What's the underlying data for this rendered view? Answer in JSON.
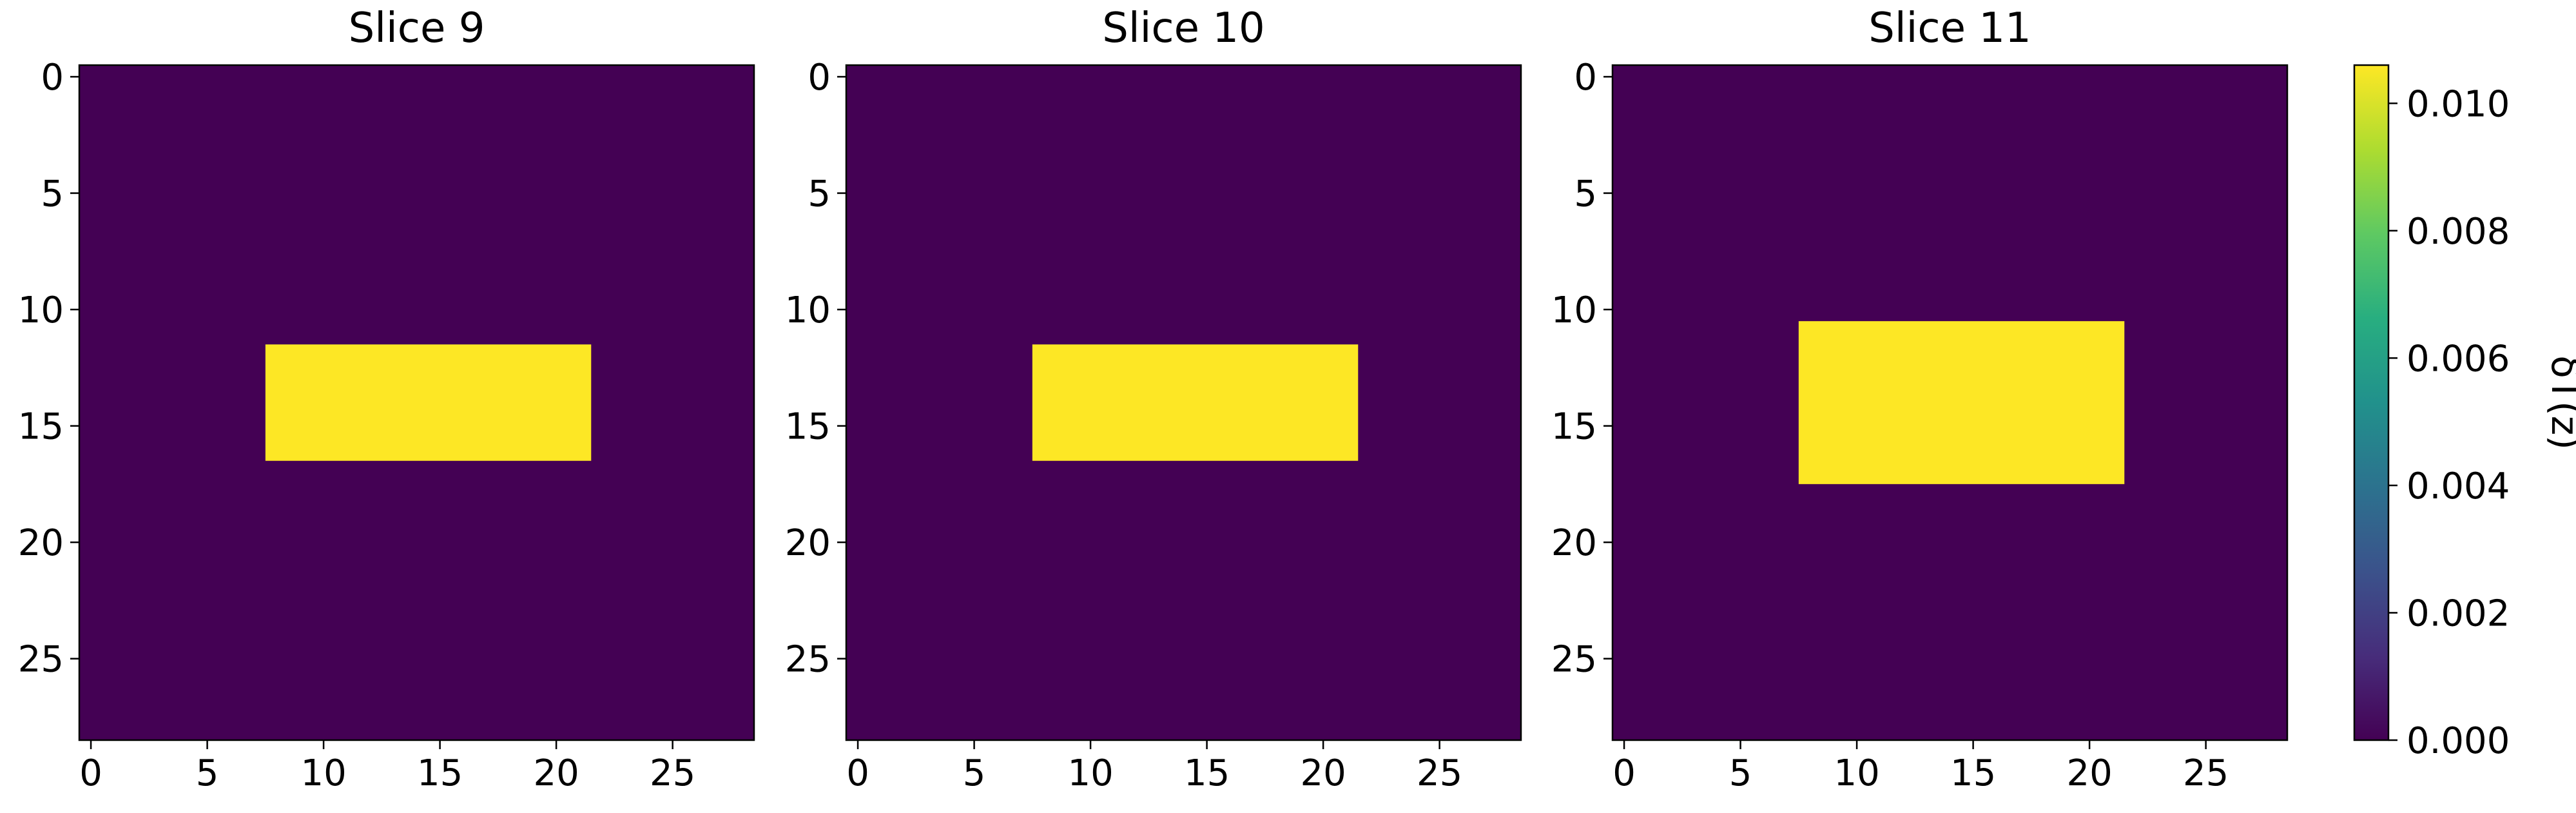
{
  "chart_data": [
    {
      "type": "heatmap",
      "title": "Slice 9",
      "xlim": [
        -0.5,
        28.5
      ],
      "ylim": [
        28.5,
        -0.5
      ],
      "xticks": [
        0,
        5,
        10,
        15,
        20,
        25
      ],
      "yticks": [
        0,
        5,
        10,
        15,
        20,
        25
      ],
      "background_value": 0.0,
      "regions": [
        {
          "value": 0.0106,
          "cols": [
            8,
            21
          ],
          "rows": [
            12,
            16
          ]
        }
      ]
    },
    {
      "type": "heatmap",
      "title": "Slice 10",
      "xlim": [
        -0.5,
        28.5
      ],
      "ylim": [
        28.5,
        -0.5
      ],
      "xticks": [
        0,
        5,
        10,
        15,
        20,
        25
      ],
      "yticks": [
        0,
        5,
        10,
        15,
        20,
        25
      ],
      "background_value": 0.0,
      "regions": [
        {
          "value": 0.0106,
          "cols": [
            8,
            21
          ],
          "rows": [
            12,
            16
          ]
        }
      ]
    },
    {
      "type": "heatmap",
      "title": "Slice 11",
      "xlim": [
        -0.5,
        28.5
      ],
      "ylim": [
        28.5,
        -0.5
      ],
      "xticks": [
        0,
        5,
        10,
        15,
        20,
        25
      ],
      "yticks": [
        0,
        5,
        10,
        15,
        20,
        25
      ],
      "background_value": 0.0,
      "regions": [
        {
          "value": 0.0106,
          "cols": [
            8,
            21
          ],
          "rows": [
            11,
            17
          ]
        }
      ]
    }
  ],
  "colorbar": {
    "label": "δT(z)",
    "colormap": "viridis",
    "vmin": 0.0,
    "vmax": 0.0106,
    "ticks": [
      0.0,
      0.002,
      0.004,
      0.006,
      0.008,
      0.01
    ],
    "tick_labels": [
      "0.000",
      "0.002",
      "0.004",
      "0.006",
      "0.008",
      "0.010"
    ]
  }
}
